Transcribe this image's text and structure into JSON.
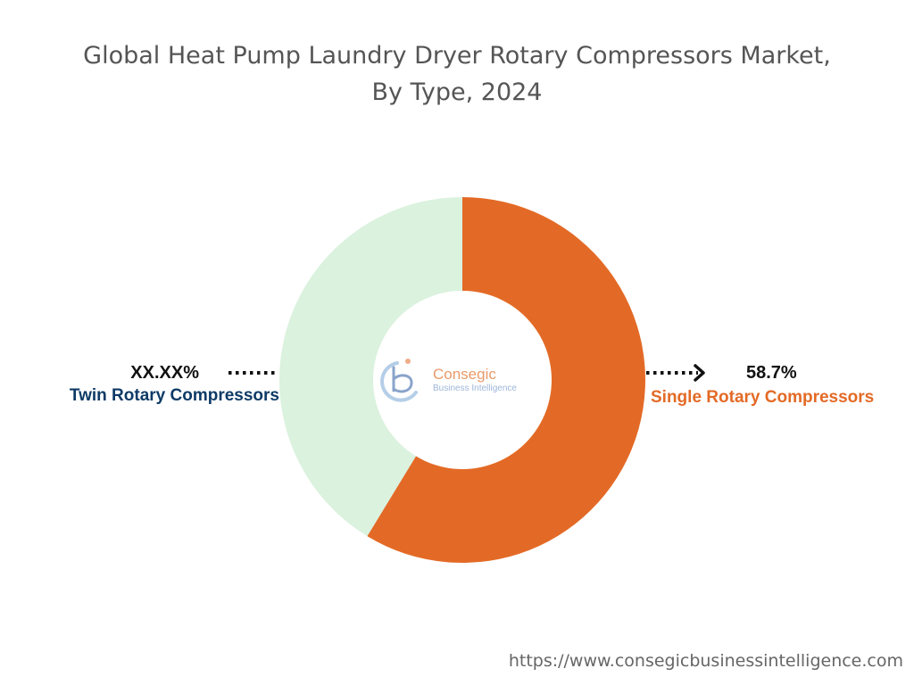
{
  "title_line1": "Global Heat Pump Laundry Dryer Rotary Compressors Market,",
  "title_line2": "By Type, 2024",
  "chart_data": {
    "type": "pie",
    "donut": true,
    "title": "Global Heat Pump Laundry Dryer Rotary Compressors Market, By Type, 2024",
    "slices": [
      {
        "label": "Single Rotary Compressors",
        "value": 58.7,
        "display": "58.7%",
        "color": "#e36a26"
      },
      {
        "label": "Twin Rotary Compressors",
        "value": 41.3,
        "display": "XX.XX%",
        "color": "#dbf2de"
      }
    ]
  },
  "colors": {
    "twin_label": "#0e3a66",
    "single_label": "#e36a26"
  },
  "logo": {
    "name": "Consegic",
    "tagline": "Business Intelligence"
  },
  "footer_url": "https://www.consegicbusinessintelligence.com"
}
